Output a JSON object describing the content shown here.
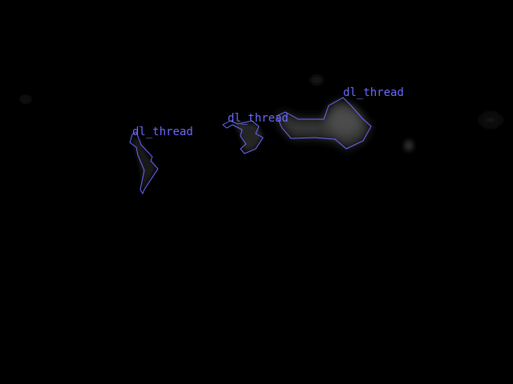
{
  "image": {
    "background_color": "#000000",
    "annotation_color": "#6b6bff",
    "detections": [
      {
        "label": "dl_thread"
      },
      {
        "label": "dl_thread"
      },
      {
        "label": "dl_thread"
      }
    ]
  }
}
